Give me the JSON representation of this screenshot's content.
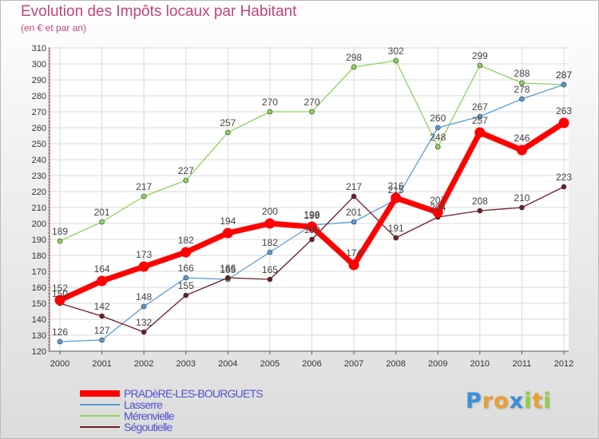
{
  "chart_data": {
    "type": "line",
    "title": "Evolution des Impôts locaux par Habitant",
    "subtitle": "(en € et par an)",
    "x": [
      "2000",
      "2001",
      "2002",
      "2003",
      "2004",
      "2005",
      "2006",
      "2007",
      "2008",
      "2009",
      "2010",
      "2011",
      "2012"
    ],
    "ylim": [
      120,
      310
    ],
    "ytick_step": 10,
    "grid": true,
    "series": [
      {
        "name": "PRADèRE-LES-BOURGUETS",
        "color": "#ff0000",
        "values": [
          152,
          164,
          173,
          182,
          194,
          200,
          198,
          174,
          216,
          207,
          257,
          246,
          263
        ],
        "labels": [
          "152",
          "164",
          "173",
          "182",
          "194",
          "200",
          "198",
          "174",
          "216",
          "207",
          "257",
          "246",
          "263"
        ]
      },
      {
        "name": "Lasserre",
        "color": "#5b9bd5",
        "values": [
          126,
          127,
          148,
          166,
          165,
          182,
          199,
          201,
          215,
          260,
          267,
          278,
          287
        ],
        "labels": [
          "126",
          "127",
          "148",
          "166",
          "165",
          "182",
          "199",
          "201",
          "215",
          "260",
          "267",
          "278",
          "287"
        ]
      },
      {
        "name": "Mérenvielle",
        "color": "#8fd35c",
        "values": [
          189,
          201,
          217,
          227,
          257,
          270,
          270,
          298,
          302,
          248,
          299,
          288,
          287
        ],
        "labels": [
          "189",
          "201",
          "217",
          "227",
          "257",
          "270",
          "270",
          "298",
          "302",
          "248",
          "299",
          "288",
          "287"
        ]
      },
      {
        "name": "Ségoutielle",
        "color": "#6b1f25",
        "values": [
          150,
          142,
          132,
          155,
          166,
          165,
          190,
          217,
          191,
          204,
          208,
          210,
          223
        ],
        "labels": [
          "150",
          "142",
          "132",
          "155",
          "166",
          "165",
          "190",
          "217",
          "191",
          "204",
          "208",
          "210",
          "223"
        ]
      }
    ]
  },
  "legend": {
    "items": [
      {
        "label": "PRADèRE-LES-BOURGUETS",
        "color": "#ff0000",
        "text_color": "#5050d0"
      },
      {
        "label": "Lasserre",
        "color": "#5b9bd5",
        "text_color": "#5050d0"
      },
      {
        "label": "Mérenvielle",
        "color": "#8fd35c",
        "text_color": "#5050d0"
      },
      {
        "label": "Ségoutielle",
        "color": "#6b1f25",
        "text_color": "#5050d0"
      }
    ]
  },
  "logo": {
    "letters": [
      "P",
      "r",
      "o",
      "x",
      "i",
      "t",
      "i"
    ],
    "colors": [
      "#3a8fd8",
      "#e8a030",
      "#e8a030",
      "#3a8fd8",
      "#8fcf3c",
      "#e8a030",
      "#8fcf3c"
    ]
  }
}
